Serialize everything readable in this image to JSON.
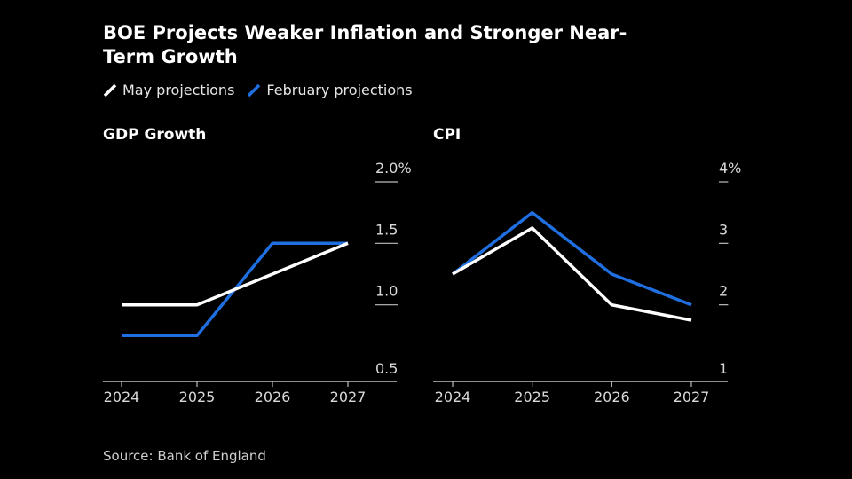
{
  "title_lines": [
    "BOE Projects Weaker Inflation and Stronger Near-",
    "Term Growth"
  ],
  "legend": [
    {
      "label": "May projections",
      "color": "#ffffff"
    },
    {
      "label": "February projections",
      "color": "#1f6fe0"
    }
  ],
  "source": "Source: Bank of England",
  "chart_data": [
    {
      "type": "line",
      "title": "GDP Growth",
      "categories": [
        "2024",
        "2025",
        "2026",
        "2027"
      ],
      "ylim": [
        0.5,
        2.0
      ],
      "yticks": [
        0.5,
        1.0,
        1.5,
        2.0
      ],
      "ytick_labels": [
        "0.5",
        "1.0",
        "1.5",
        "2.0%"
      ],
      "series": [
        {
          "name": "May projections",
          "color": "#ffffff",
          "values": [
            1.0,
            1.0,
            1.25,
            1.5
          ]
        },
        {
          "name": "February projections",
          "color": "#1f6fe0",
          "values": [
            0.75,
            0.75,
            1.5,
            1.5
          ]
        }
      ]
    },
    {
      "type": "line",
      "title": "CPI",
      "categories": [
        "2024",
        "2025",
        "2026",
        "2027"
      ],
      "ylim": [
        1,
        4
      ],
      "yticks": [
        1,
        2,
        3,
        4
      ],
      "ytick_labels": [
        "1",
        "2",
        "3",
        "4%"
      ],
      "series": [
        {
          "name": "May projections",
          "color": "#ffffff",
          "values": [
            2.5,
            3.25,
            2.0,
            1.75
          ]
        },
        {
          "name": "February projections",
          "color": "#1f6fe0",
          "values": [
            2.5,
            3.5,
            2.5,
            2.0
          ]
        }
      ]
    }
  ]
}
